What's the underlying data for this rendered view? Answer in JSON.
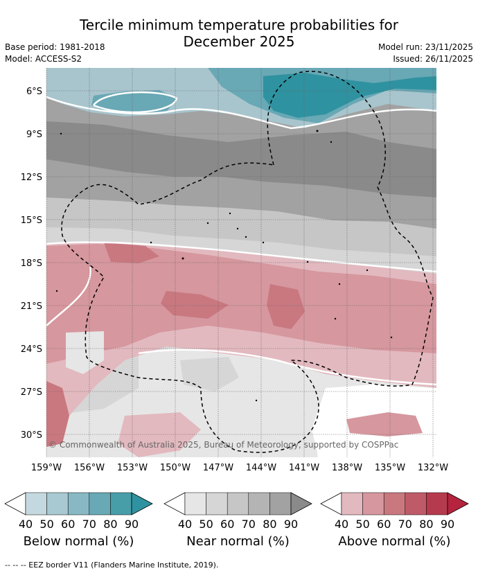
{
  "title_line1": "Tercile minimum temperature probabilities for",
  "title_line2": "December 2025",
  "base_period": "Base period: 1981-2018",
  "model": "Model: ACCESS-S2",
  "model_run": "Model run: 23/11/2025",
  "issued": "Issued: 26/11/2025",
  "copyright": "© Commonwealth of Australia 2025, Bureau of Meteorology, supported by COSPPac",
  "lat_labels": [
    "6°S",
    "9°S",
    "12°S",
    "15°S",
    "18°S",
    "21°S",
    "24°S",
    "27°S",
    "30°S"
  ],
  "lon_labels": [
    "159°W",
    "156°W",
    "153°W",
    "150°W",
    "147°W",
    "144°W",
    "141°W",
    "138°W",
    "135°W",
    "132°W"
  ],
  "colorbars": [
    {
      "label": "Below normal (%)",
      "ticks": [
        "40",
        "50",
        "60",
        "70",
        "80",
        "90"
      ],
      "colors": [
        "#c4d9df",
        "#a8c9d1",
        "#88b8c3",
        "#69a8b5",
        "#479ea9",
        "#2f92a0"
      ]
    },
    {
      "label": "Near normal (%)",
      "ticks": [
        "40",
        "50",
        "60",
        "70",
        "80",
        "90"
      ],
      "colors": [
        "#e6e6e6",
        "#d6d6d6",
        "#c6c6c6",
        "#b4b4b4",
        "#a2a2a2",
        "#8a8a8a"
      ]
    },
    {
      "label": "Above normal (%)",
      "ticks": [
        "40",
        "50",
        "60",
        "70",
        "80",
        "90"
      ],
      "colors": [
        "#e2b9bf",
        "#d6979e",
        "#c97880",
        "#bf5b68",
        "#b63a4d",
        "#b5233f"
      ]
    }
  ],
  "footer": "--  --  -- EEZ border V11 (Flanders Marine Institute, 2019).",
  "colors": {
    "below_50": "#a8c9d1",
    "below_70": "#69a8b5",
    "below_90": "#2f92a0",
    "near_40": "#e6e6e6",
    "near_50": "#d6d6d6",
    "near_60": "#c6c6c6",
    "near_70": "#b4b4b4",
    "near_80": "#a2a2a2",
    "near_90": "#8a8a8a",
    "above_40": "#e2b9bf",
    "above_50": "#d6979e",
    "above_60": "#c97880",
    "above_70": "#bf5b68"
  }
}
